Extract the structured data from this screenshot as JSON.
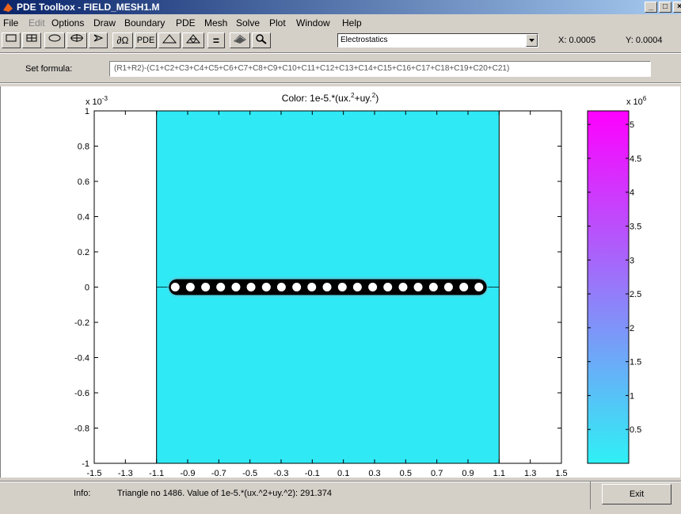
{
  "window": {
    "title": "PDE Toolbox - FIELD_MESH1.M",
    "buttons": [
      "_",
      "□",
      "×"
    ]
  },
  "menu": [
    "File",
    "Edit",
    "Options",
    "Draw",
    "Boundary",
    "PDE",
    "Mesh",
    "Solve",
    "Plot",
    "Window",
    "Help"
  ],
  "toolbar": {
    "pde_label": "PDE",
    "eq_label": "=",
    "application": "Electrostatics",
    "x_coord": "X: 0.0005",
    "y_coord": "Y: 0.0004"
  },
  "formula": {
    "label": "Set formula:",
    "value": "(R1+R2)-(C1+C2+C3+C4+C5+C6+C7+C8+C9+C10+C11+C12+C13+C14+C15+C16+C17+C18+C19+C20+C21)"
  },
  "plot": {
    "title_prefix": "Color: 1e-5.*(ux.",
    "title_mid": "+uy.",
    "title_end": ")",
    "title_exp": "2",
    "y_multiplier": "x 10",
    "y_multiplier_exp": "-3",
    "cb_multiplier": "x 10",
    "cb_multiplier_exp": "6",
    "colors": {
      "field": "#2fe9f5",
      "cb_top": "#ff00ff",
      "cb_bottom": "#2ff0f5",
      "conductor": "#000000"
    }
  },
  "chart_data": [
    {
      "type": "heatmap",
      "title": "Color: 1e-5.*(ux.^2+uy.^2)",
      "xlim": [
        -1.5,
        1.5
      ],
      "ylim": [
        -1,
        1
      ],
      "x_ticks": [
        "-1.5",
        "-1.3",
        "-1.1",
        "-0.9",
        "-0.7",
        "-0.5",
        "-0.3",
        "-0.1",
        "0.1",
        "0.3",
        "0.5",
        "0.7",
        "0.9",
        "1.1",
        "1.3",
        "1.5"
      ],
      "x_tick_values": [
        -1.5,
        -1.3,
        -1.1,
        -0.9,
        -0.7,
        -0.5,
        -0.3,
        -0.1,
        0.1,
        0.3,
        0.5,
        0.7,
        0.9,
        1.1,
        1.3,
        1.5
      ],
      "y_ticks": [
        "1",
        "0.8",
        "0.6",
        "0.4",
        "0.2",
        "0",
        "-0.2",
        "-0.4",
        "-0.6",
        "-0.8",
        "-1"
      ],
      "y_tick_values": [
        1,
        0.8,
        0.6,
        0.4,
        0.2,
        0,
        -0.2,
        -0.4,
        -0.6,
        -0.8,
        -1
      ],
      "domain_x": [
        -1.1,
        1.1
      ],
      "conductor_x": [
        -1.0,
        1.0
      ],
      "circle_centers_x": [
        -0.98,
        -0.883,
        -0.785,
        -0.688,
        -0.59,
        -0.493,
        -0.395,
        -0.298,
        -0.2,
        -0.103,
        -0.005,
        0.093,
        0.19,
        0.288,
        0.385,
        0.483,
        0.58,
        0.678,
        0.775,
        0.873,
        0.97
      ]
    },
    {
      "type": "heatmap",
      "title": "colorbar",
      "range": [
        0,
        5.2
      ],
      "ticks": [
        "5",
        "4.5",
        "4",
        "3.5",
        "3",
        "2.5",
        "2",
        "1.5",
        "1",
        "0.5"
      ],
      "tick_values": [
        5,
        4.5,
        4,
        3.5,
        3,
        2.5,
        2,
        1.5,
        1,
        0.5
      ]
    }
  ],
  "status": {
    "info_label": "Info:",
    "info_text": "Triangle no 1486. Value of 1e-5.*(ux.^2+uy.^2): 291.374",
    "exit_label": "Exit"
  }
}
